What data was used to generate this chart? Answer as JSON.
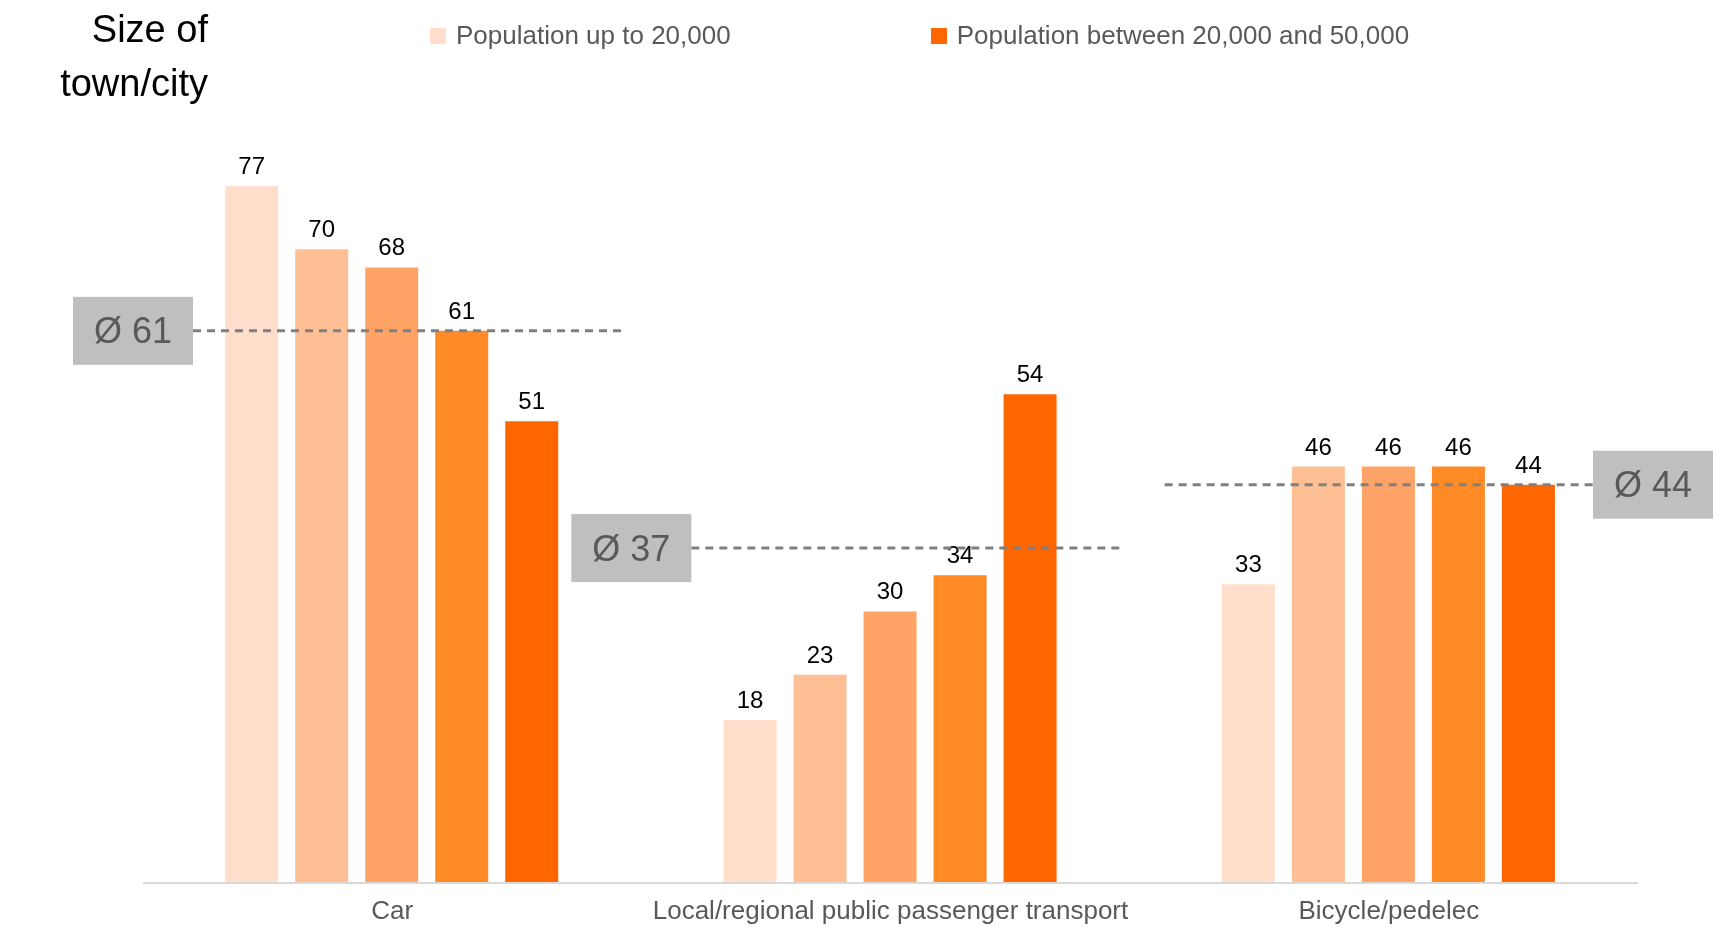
{
  "chart_data": {
    "type": "bar",
    "legend_title": "Size of town/city",
    "categories": [
      "Car",
      "Local/regional public passenger transport",
      "Bicycle/pedelec"
    ],
    "series": [
      {
        "name": "Population up to 20,000",
        "color": "#ffdfcc",
        "values": [
          77,
          18,
          33
        ]
      },
      {
        "color": "#ffbf94",
        "values": [
          70,
          23,
          46
        ]
      },
      {
        "color": "#ffa366",
        "values": [
          68,
          30,
          46
        ]
      },
      {
        "color": "#ff8a26",
        "values": [
          61,
          34,
          46
        ]
      },
      {
        "name": "Population between 20,000 and 50,000",
        "color": "#ff6600",
        "values": [
          51,
          54,
          44
        ]
      }
    ],
    "data_labels": true,
    "legend": "top",
    "tick_labels": "x",
    "grid": false,
    "ref_lines": [
      {
        "axis": "y",
        "value": 61,
        "label": "Ø 61",
        "color": "#808080",
        "line_style": "dashed"
      },
      {
        "axis": "y",
        "value": 37,
        "label": "Ø 37",
        "color": "#808080",
        "line_style": "dashed"
      },
      {
        "axis": "y",
        "value": 44,
        "label": "Ø 44",
        "color": "#808080",
        "line_style": "dashed"
      }
    ]
  }
}
